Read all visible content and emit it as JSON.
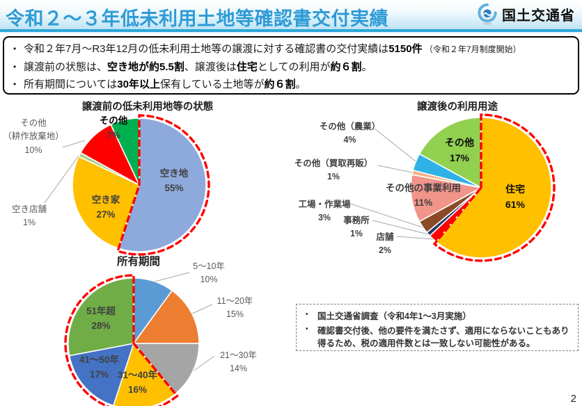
{
  "page": {
    "number": "2"
  },
  "theme": {
    "title_color": "#2E9BD6",
    "header_line_color": "#2BA6D9",
    "header_band_color": "#BEE3F4",
    "highlight_color": "#FF0000"
  },
  "header": {
    "title": "令和２～３年低未利用土地等確認書交付実績",
    "agency": "国土交通省"
  },
  "summary": {
    "bullets": [
      [
        {
          "t": "令和２年7月～R3年12月の低未利用土地等の譲渡に対する確認書の交付実績は"
        },
        {
          "t": "5150件",
          "b": true
        },
        {
          "t": " （令和２年7月制度開始）",
          "small": true
        }
      ],
      [
        {
          "t": "譲渡前の状態は、"
        },
        {
          "t": "空き地が約5.5割",
          "b": true
        },
        {
          "t": "、譲渡後は"
        },
        {
          "t": "住宅",
          "b": true
        },
        {
          "t": "としての利用が"
        },
        {
          "t": "約６割",
          "b": true
        },
        {
          "t": "。"
        }
      ],
      [
        {
          "t": "所有期間については"
        },
        {
          "t": "30年以上",
          "b": true
        },
        {
          "t": "保有している土地等が"
        },
        {
          "t": "約６割",
          "b": true
        },
        {
          "t": "。"
        }
      ]
    ]
  },
  "chart_data": [
    {
      "type": "pie",
      "title": "譲渡前の低未利用地等の状態",
      "start_angle": "top",
      "direction": "clockwise",
      "slices": [
        {
          "label": "空き地",
          "pct": 55,
          "color": "#8EA9DB",
          "highlight": true
        },
        {
          "label": "空き家",
          "pct": 27,
          "color": "#FFC000"
        },
        {
          "label": "空き店舗",
          "pct": 1,
          "color": "#A9D18E"
        },
        {
          "label": "その他（耕作放棄地）",
          "label_line1": "その他",
          "label_line2": "（耕作放棄地）",
          "pct": 10,
          "color": "#FF0000"
        },
        {
          "label": "その他",
          "pct": 7,
          "color": "#00B050"
        }
      ],
      "highlight_range": [
        0,
        55
      ]
    },
    {
      "type": "pie",
      "title": "譲渡後の利用用途",
      "start_angle": "top",
      "direction": "clockwise",
      "slices": [
        {
          "label": "住宅",
          "pct": 61,
          "color": "#FFC000",
          "highlight": true
        },
        {
          "label": "店舗",
          "pct": 2,
          "color": "#FF0000"
        },
        {
          "label": "事務所",
          "pct": 1,
          "color": "#203864"
        },
        {
          "label": "工場・作業場",
          "pct": 3,
          "color": "#8A4A26"
        },
        {
          "label": "その他の事業利用",
          "pct": 11,
          "color": "#F1948A"
        },
        {
          "label": "その他（買取再販）",
          "pct": 1,
          "color": "#F4B183"
        },
        {
          "label": "その他（農業）",
          "pct": 4,
          "color": "#2EB1E6"
        },
        {
          "label": "その他",
          "pct": 17,
          "color": "#92D050"
        }
      ],
      "highlight_range": [
        0,
        61
      ]
    },
    {
      "type": "pie",
      "title": "所有期間",
      "start_angle": "top",
      "direction": "clockwise",
      "slices": [
        {
          "label": "5～10年",
          "pct": 10,
          "color": "#5B9BD5"
        },
        {
          "label": "11～20年",
          "pct": 15,
          "color": "#ED7D31"
        },
        {
          "label": "21～30年",
          "pct": 14,
          "color": "#A5A5A5"
        },
        {
          "label": "31～40年",
          "pct": 16,
          "color": "#FFC000"
        },
        {
          "label": "41～50年",
          "pct": 17,
          "color": "#4472C4"
        },
        {
          "label": "51年超",
          "pct": 28,
          "color": "#70AD47"
        }
      ],
      "highlight_range": [
        39,
        100
      ]
    }
  ],
  "notes": {
    "items": [
      "国土交通省調査（令和4年1～3月実施）",
      "確認書交付後、他の要件を満たさず、適用にならないこともあり得るため、税の適用件数とは一致しない可能性がある。"
    ]
  }
}
